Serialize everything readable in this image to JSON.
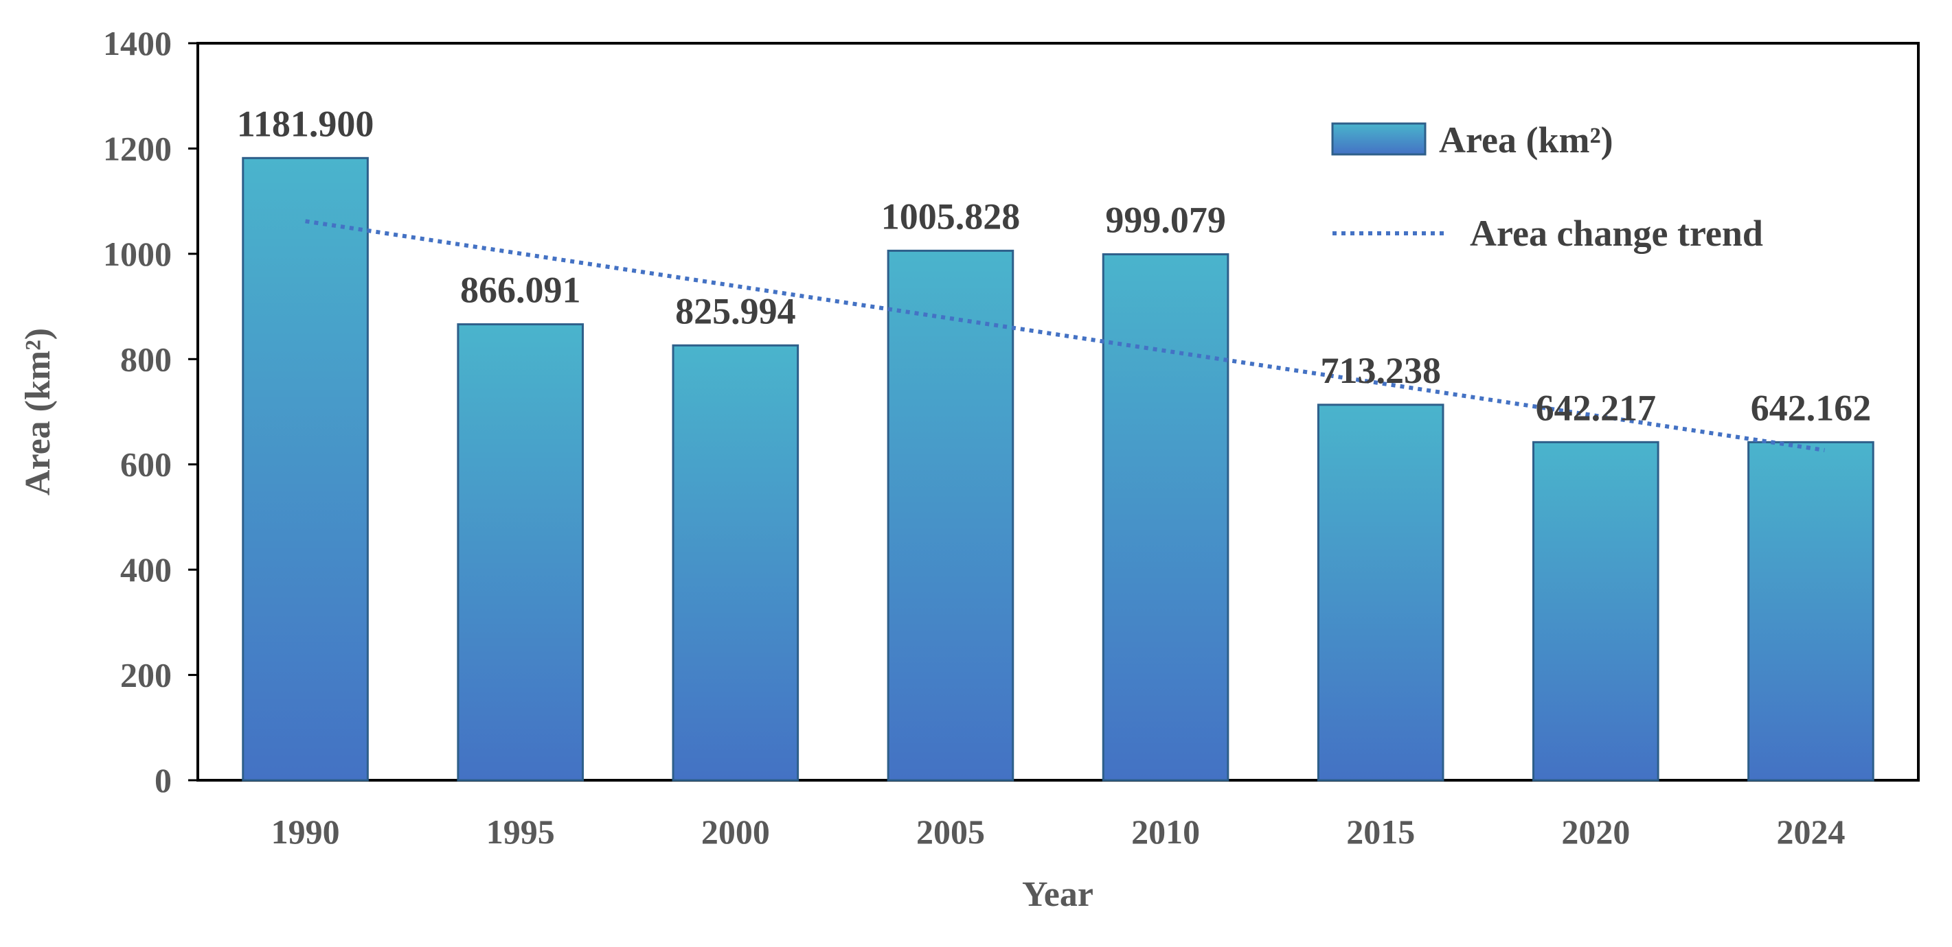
{
  "chart_data": {
    "type": "bar",
    "title": "",
    "xlabel": "Year",
    "ylabel": "Area (km²)",
    "ylim": [
      0,
      1400
    ],
    "yticks": [
      0,
      200,
      400,
      600,
      800,
      1000,
      1200,
      1400
    ],
    "categories": [
      "1990",
      "1995",
      "2000",
      "2005",
      "2010",
      "2015",
      "2020",
      "2024"
    ],
    "series": [
      {
        "name": "Area (km²)",
        "values": [
          1181.9,
          866.091,
          825.994,
          1005.828,
          999.079,
          713.238,
          642.217,
          642.162
        ],
        "value_labels": [
          "1181.900",
          "866.091",
          "825.994",
          "1005.828",
          "999.079",
          "713.238",
          "642.217",
          "642.162"
        ]
      }
    ],
    "trendline": {
      "name": "Area change trend",
      "style": "dotted",
      "start_value": 1062,
      "end_value": 627
    },
    "legend_position": "top-right",
    "grid": false,
    "colors": {
      "bar_top": "#4ab4cc",
      "bar_bottom": "#4472c4",
      "bar_border": "#2e5f8a",
      "trend": "#4472c4",
      "axis": "#000000"
    }
  }
}
